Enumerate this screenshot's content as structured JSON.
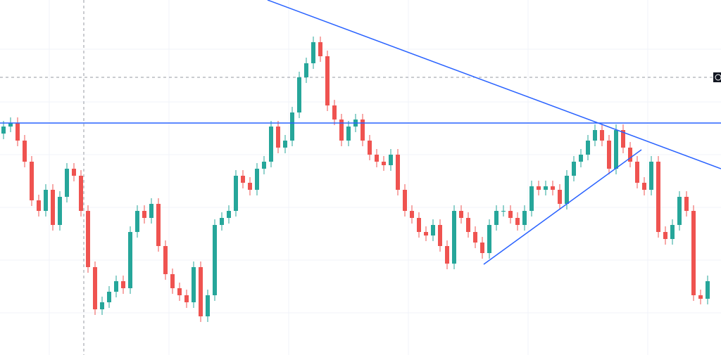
{
  "chart_data": {
    "type": "candlestick",
    "ylim": [
      0,
      505
    ],
    "up_color": "#26a69a",
    "down_color": "#ef5350",
    "open": [
      315,
      325,
      330,
      305,
      275,
      220,
      205,
      235,
      185,
      225,
      265,
      255,
      205,
      125,
      65,
      75,
      90,
      105,
      95,
      175,
      205,
      195,
      215,
      155,
      115,
      95,
      85,
      75,
      125,
      55,
      85,
      185,
      195,
      205,
      255,
      245,
      235,
      265,
      275,
      325,
      295,
      305,
      345,
      395,
      415,
      445,
      425,
      355,
      335,
      305,
      325,
      335,
      305,
      285,
      275,
      270,
      285,
      235,
      205,
      195,
      175,
      170,
      185,
      155,
      130,
      205,
      195,
      175,
      160,
      145,
      185,
      205,
      205,
      195,
      185,
      205,
      240,
      235,
      240,
      235,
      215,
      255,
      275,
      285,
      305,
      320,
      305,
      265,
      320,
      295,
      275,
      245,
      235,
      275,
      175,
      165,
      185,
      225,
      205,
      85,
      80
    ],
    "high": [
      333,
      338,
      338,
      313,
      283,
      228,
      243,
      243,
      233,
      273,
      273,
      263,
      213,
      133,
      83,
      98,
      113,
      113,
      183,
      213,
      213,
      223,
      223,
      163,
      123,
      103,
      93,
      133,
      133,
      93,
      193,
      203,
      213,
      263,
      263,
      253,
      273,
      283,
      333,
      333,
      313,
      353,
      403,
      423,
      453,
      453,
      433,
      363,
      343,
      333,
      343,
      343,
      313,
      293,
      283,
      293,
      293,
      243,
      213,
      203,
      183,
      193,
      193,
      163,
      213,
      213,
      203,
      183,
      168,
      193,
      213,
      213,
      213,
      203,
      213,
      248,
      248,
      248,
      248,
      243,
      263,
      283,
      293,
      313,
      328,
      328,
      313,
      328,
      328,
      303,
      283,
      253,
      283,
      283,
      183,
      193,
      233,
      233,
      213,
      93,
      113
    ],
    "low": [
      307,
      317,
      297,
      267,
      212,
      197,
      197,
      177,
      177,
      217,
      247,
      197,
      117,
      57,
      57,
      67,
      82,
      87,
      87,
      167,
      187,
      187,
      147,
      107,
      87,
      77,
      67,
      67,
      47,
      47,
      77,
      177,
      187,
      197,
      237,
      227,
      227,
      257,
      267,
      287,
      287,
      297,
      337,
      387,
      407,
      417,
      347,
      327,
      297,
      297,
      317,
      297,
      277,
      267,
      262,
      262,
      227,
      197,
      187,
      167,
      162,
      162,
      147,
      122,
      122,
      187,
      167,
      152,
      137,
      137,
      177,
      197,
      187,
      177,
      177,
      197,
      227,
      227,
      227,
      207,
      207,
      247,
      267,
      277,
      297,
      297,
      257,
      257,
      287,
      267,
      237,
      227,
      227,
      167,
      157,
      157,
      177,
      197,
      77,
      72,
      72
    ],
    "close": [
      325,
      330,
      305,
      275,
      220,
      205,
      235,
      185,
      225,
      265,
      255,
      205,
      125,
      65,
      75,
      90,
      105,
      95,
      175,
      205,
      195,
      215,
      155,
      115,
      95,
      85,
      75,
      125,
      55,
      85,
      185,
      195,
      205,
      255,
      245,
      235,
      265,
      275,
      325,
      295,
      305,
      345,
      395,
      415,
      445,
      425,
      355,
      335,
      305,
      325,
      335,
      305,
      285,
      275,
      270,
      285,
      235,
      205,
      195,
      175,
      170,
      185,
      155,
      130,
      205,
      195,
      175,
      160,
      145,
      185,
      205,
      205,
      195,
      185,
      205,
      240,
      235,
      240,
      235,
      215,
      255,
      275,
      285,
      305,
      320,
      305,
      265,
      320,
      295,
      275,
      245,
      235,
      275,
      175,
      165,
      185,
      225,
      205,
      85,
      80,
      105
    ]
  }
}
